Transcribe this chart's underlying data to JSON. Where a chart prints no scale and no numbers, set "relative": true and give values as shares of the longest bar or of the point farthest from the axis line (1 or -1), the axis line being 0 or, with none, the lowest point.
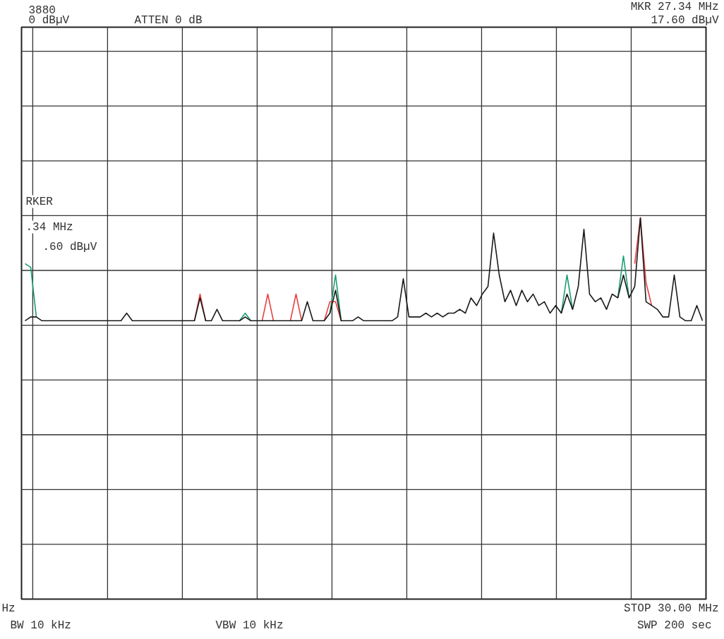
{
  "chart_data": {
    "type": "line",
    "relative": true,
    "grid": true,
    "line_style": "solid",
    "marker": "none",
    "categories": [
      null,
      null,
      null,
      null,
      null,
      null,
      null,
      null,
      null,
      null,
      null,
      null,
      null,
      null,
      null,
      null,
      null,
      null,
      null,
      null,
      null,
      null,
      null,
      null,
      null,
      null,
      null,
      null,
      null,
      null,
      null,
      null,
      null,
      null,
      null,
      null,
      null,
      null,
      null,
      null,
      null,
      null,
      null,
      null,
      null,
      null,
      null,
      null,
      null,
      null,
      null,
      null,
      null,
      null,
      null,
      null,
      null,
      null,
      null,
      null,
      null,
      null,
      null,
      null,
      null,
      null,
      null,
      null,
      null,
      null,
      null,
      null,
      null,
      null,
      null,
      null,
      null,
      null,
      null,
      null,
      null,
      null,
      null,
      null,
      null,
      null,
      null,
      null,
      null,
      null,
      null,
      null,
      null,
      null,
      null,
      null,
      null,
      null,
      null,
      null,
      null,
      null,
      null,
      null,
      null,
      null,
      null,
      null,
      null,
      null,
      null,
      null,
      null,
      null,
      null,
      null,
      null,
      null,
      null,
      null,
      null
    ],
    "series": [
      {
        "color": "#1a9e6e",
        "values": [
          0.88,
          0.87,
          0.74,
          null,
          null,
          null,
          null,
          null,
          null,
          null,
          null,
          null,
          null,
          null,
          null,
          null,
          null,
          null,
          null,
          null,
          null,
          null,
          null,
          null,
          null,
          null,
          null,
          null,
          null,
          null,
          null,
          null,
          null,
          null,
          null,
          null,
          null,
          null,
          0.73,
          0.75,
          0.73,
          null,
          null,
          null,
          null,
          null,
          null,
          null,
          null,
          null,
          null,
          null,
          null,
          null,
          0.75,
          0.85,
          0.73,
          null,
          null,
          null,
          null,
          null,
          null,
          null,
          null,
          null,
          null,
          null,
          null,
          null,
          null,
          null,
          null,
          null,
          null,
          null,
          null,
          null,
          null,
          null,
          null,
          null,
          null,
          null,
          null,
          null,
          null,
          null,
          null,
          null,
          null,
          null,
          null,
          null,
          null,
          0.75,
          0.85,
          0.76,
          null,
          null,
          null,
          null,
          null,
          null,
          null,
          0.79,
          0.9,
          0.79,
          null,
          null,
          null,
          null,
          null,
          null,
          null,
          null,
          null,
          null,
          null,
          null,
          null
        ]
      },
      {
        "color": "#e8403f",
        "values": [
          null,
          null,
          null,
          null,
          null,
          null,
          null,
          null,
          null,
          null,
          null,
          null,
          null,
          null,
          null,
          null,
          null,
          null,
          null,
          null,
          null,
          null,
          null,
          null,
          null,
          null,
          null,
          null,
          null,
          null,
          0.73,
          0.8,
          0.73,
          null,
          null,
          null,
          null,
          null,
          null,
          null,
          null,
          null,
          0.73,
          0.8,
          0.73,
          null,
          null,
          0.73,
          0.8,
          0.73,
          null,
          null,
          null,
          0.73,
          0.78,
          0.78,
          0.73,
          null,
          null,
          null,
          null,
          null,
          null,
          null,
          null,
          null,
          null,
          null,
          null,
          null,
          null,
          null,
          null,
          null,
          null,
          null,
          null,
          null,
          null,
          null,
          null,
          null,
          null,
          null,
          null,
          null,
          null,
          null,
          null,
          null,
          null,
          null,
          null,
          null,
          null,
          null,
          null,
          null,
          null,
          null,
          null,
          null,
          null,
          null,
          null,
          null,
          null,
          null,
          0.88,
          1.0,
          0.83,
          0.77,
          null,
          null,
          null,
          null,
          null,
          null,
          null,
          null,
          null
        ]
      },
      {
        "color": "#1a1a1a",
        "values": [
          0.73,
          0.74,
          0.74,
          0.73,
          0.73,
          0.73,
          0.73,
          0.73,
          0.73,
          0.73,
          0.73,
          0.73,
          0.73,
          0.73,
          0.73,
          0.73,
          0.73,
          0.73,
          0.75,
          0.73,
          0.73,
          0.73,
          0.73,
          0.73,
          0.73,
          0.73,
          0.73,
          0.73,
          0.73,
          0.73,
          0.73,
          0.79,
          0.73,
          0.73,
          0.76,
          0.73,
          0.73,
          0.73,
          0.73,
          0.74,
          0.73,
          0.73,
          0.73,
          0.73,
          0.73,
          0.73,
          0.73,
          0.73,
          0.73,
          0.73,
          0.78,
          0.73,
          0.73,
          0.73,
          0.75,
          0.81,
          0.73,
          0.73,
          0.73,
          0.74,
          0.73,
          0.73,
          0.73,
          0.73,
          0.73,
          0.73,
          0.74,
          0.84,
          0.74,
          0.74,
          0.74,
          0.75,
          0.74,
          0.75,
          0.74,
          0.75,
          0.75,
          0.76,
          0.75,
          0.79,
          0.77,
          0.8,
          0.82,
          0.96,
          0.85,
          0.78,
          0.81,
          0.77,
          0.81,
          0.78,
          0.8,
          0.77,
          0.78,
          0.75,
          0.77,
          0.75,
          0.8,
          0.76,
          0.82,
          0.97,
          0.8,
          0.78,
          0.79,
          0.76,
          0.8,
          0.79,
          0.85,
          0.79,
          0.82,
          1.0,
          0.78,
          0.77,
          0.76,
          0.74,
          0.74,
          0.85,
          0.74,
          0.73,
          0.73,
          0.77,
          0.73
        ]
      }
    ],
    "annotations": [
      "3880",
      "0 dBµV",
      "ATTEN 0 dB",
      "MKR 27.34 MHz",
      "17.60 dBµV",
      "RKER",
      ".34 MHz",
      ".60 dBµV",
      "Hz",
      "BW 10 kHz",
      "VBW 10 kHz",
      "STOP 30.00 MHz",
      "SWP 200 sec"
    ]
  }
}
